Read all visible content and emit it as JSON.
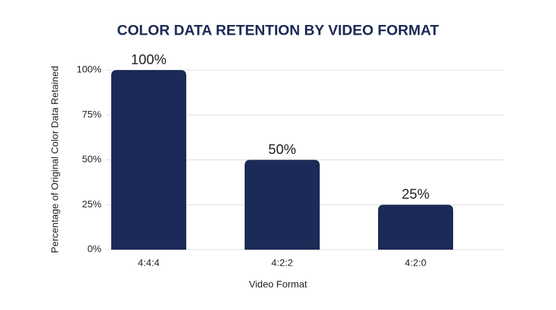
{
  "chart_data": {
    "type": "bar",
    "title": "COLOR DATA RETENTION BY VIDEO FORMAT",
    "x_label": "Video Format",
    "y_label": "Percentage of Original Color Data Retained",
    "categories": [
      "4:4:4",
      "4:2:2",
      "4:2:0"
    ],
    "values": [
      100,
      50,
      25
    ],
    "value_labels": [
      "100%",
      "50%",
      "25%"
    ],
    "color": "#1b2a56",
    "ylim": [
      0,
      100
    ],
    "yticks": [
      {
        "value": 0,
        "label": "0%"
      },
      {
        "value": 25,
        "label": "25%"
      },
      {
        "value": 50,
        "label": "50%"
      },
      {
        "value": 75,
        "label": "75%"
      },
      {
        "value": 100,
        "label": "100%"
      }
    ],
    "grid": true
  }
}
